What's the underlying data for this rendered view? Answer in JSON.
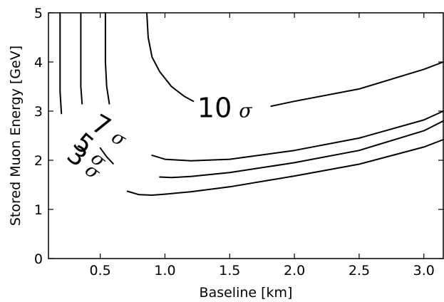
{
  "chart_data": {
    "type": "contour",
    "xlabel": "Baseline [km]",
    "ylabel": "Stored Muon Energy [GeV]",
    "xlim": [
      0.1,
      3.15
    ],
    "ylim": [
      0,
      5
    ],
    "xticks": [
      "0.5",
      "1.0",
      "1.5",
      "2.0",
      "2.5",
      "3.0"
    ],
    "xtick_values": [
      0.5,
      1.0,
      1.5,
      2.0,
      2.5,
      3.0
    ],
    "yticks": [
      "0",
      "1",
      "2",
      "3",
      "4",
      "5"
    ],
    "ytick_values": [
      0,
      1,
      2,
      3,
      4,
      5
    ],
    "grid": false,
    "contours": [
      {
        "level_label": "3",
        "sigma": "σ",
        "label_at": [
          0.23,
          2.05
        ],
        "label_size": 36,
        "label_rotation": 38,
        "segments": [
          [
            [
              0.19,
              5.0
            ],
            [
              0.19,
              4.0
            ],
            [
              0.19,
              3.4
            ],
            [
              0.2,
              2.95
            ]
          ],
          [
            [
              0.71,
              1.37
            ],
            [
              0.8,
              1.3
            ],
            [
              0.9,
              1.29
            ],
            [
              1.0,
              1.31
            ],
            [
              1.2,
              1.36
            ],
            [
              1.5,
              1.46
            ],
            [
              2.0,
              1.68
            ],
            [
              2.5,
              1.92
            ],
            [
              3.0,
              2.27
            ],
            [
              3.15,
              2.42
            ]
          ]
        ]
      },
      {
        "level_label": "5",
        "sigma": "σ",
        "label_at": [
          0.28,
          2.31
        ],
        "label_size": 36,
        "label_rotation": 40,
        "segments": [
          [
            [
              0.35,
              5.0
            ],
            [
              0.35,
              4.0
            ],
            [
              0.35,
              3.5
            ],
            [
              0.36,
              3.15
            ]
          ],
          [
            [
              0.5,
              2.25
            ],
            [
              0.55,
              2.07
            ],
            [
              0.6,
              1.93
            ]
          ],
          [
            [
              0.96,
              1.66
            ],
            [
              1.05,
              1.65
            ],
            [
              1.2,
              1.67
            ],
            [
              1.5,
              1.75
            ],
            [
              2.0,
              1.95
            ],
            [
              2.5,
              2.2
            ],
            [
              3.0,
              2.6
            ],
            [
              3.15,
              2.8
            ]
          ]
        ]
      },
      {
        "level_label": "7",
        "sigma": "σ",
        "label_at": [
          0.42,
          2.64
        ],
        "label_size": 36,
        "label_rotation": 30,
        "segments": [
          [
            [
              0.54,
              5.0
            ],
            [
              0.54,
              4.0
            ],
            [
              0.55,
              3.5
            ],
            [
              0.57,
              3.15
            ]
          ],
          [
            [
              0.9,
              2.1
            ],
            [
              1.0,
              2.02
            ],
            [
              1.2,
              1.99
            ],
            [
              1.5,
              2.02
            ],
            [
              2.0,
              2.2
            ],
            [
              2.5,
              2.45
            ],
            [
              3.0,
              2.82
            ],
            [
              3.15,
              3.0
            ]
          ]
        ]
      },
      {
        "level_label": "10",
        "sigma": "σ",
        "label_at": [
          1.25,
          2.88
        ],
        "label_size": 38,
        "label_rotation": 0,
        "segments": [
          [
            [
              0.86,
              5.0
            ],
            [
              0.87,
              4.5
            ],
            [
              0.9,
              4.1
            ],
            [
              0.96,
              3.8
            ],
            [
              1.05,
              3.5
            ],
            [
              1.15,
              3.3
            ],
            [
              1.22,
              3.2
            ]
          ],
          [
            [
              1.82,
              3.1
            ],
            [
              2.0,
              3.2
            ],
            [
              2.5,
              3.45
            ],
            [
              3.0,
              3.85
            ],
            [
              3.15,
              4.0
            ]
          ]
        ]
      }
    ]
  }
}
